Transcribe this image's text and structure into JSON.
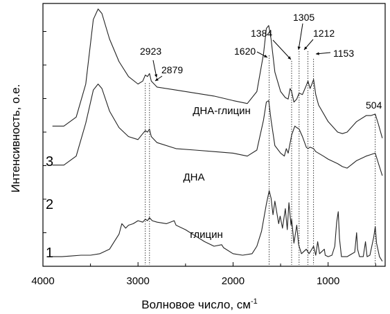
{
  "chart_data": {
    "type": "line",
    "xlabel": "Волновое число, см",
    "xlabel_sup": "-1",
    "ylabel": "Интенсивность, о.е.",
    "xlim": [
      4000,
      400
    ],
    "x_reversed": true,
    "y_ticks_labeled": false,
    "x_ticks": [
      4000,
      3000,
      2000,
      1000
    ],
    "x_tick_labels": [
      "4000",
      "3000",
      "2000",
      "1000"
    ],
    "series": [
      {
        "name": "ДНА-глицин",
        "number": "3",
        "offset": 0.7,
        "points": [
          [
            3900,
            0.22
          ],
          [
            3780,
            0.22
          ],
          [
            3650,
            0.28
          ],
          [
            3550,
            0.5
          ],
          [
            3470,
            0.93
          ],
          [
            3420,
            1.0
          ],
          [
            3380,
            0.97
          ],
          [
            3300,
            0.8
          ],
          [
            3200,
            0.65
          ],
          [
            3100,
            0.55
          ],
          [
            3000,
            0.5
          ],
          [
            2950,
            0.52
          ],
          [
            2923,
            0.56
          ],
          [
            2900,
            0.55
          ],
          [
            2879,
            0.57
          ],
          [
            2860,
            0.52
          ],
          [
            2800,
            0.48
          ],
          [
            2600,
            0.46
          ],
          [
            2400,
            0.44
          ],
          [
            2200,
            0.42
          ],
          [
            2000,
            0.39
          ],
          [
            1850,
            0.37
          ],
          [
            1750,
            0.45
          ],
          [
            1680,
            0.7
          ],
          [
            1650,
            0.87
          ],
          [
            1625,
            0.89
          ],
          [
            1600,
            0.8
          ],
          [
            1560,
            0.58
          ],
          [
            1500,
            0.45
          ],
          [
            1450,
            0.41
          ],
          [
            1420,
            0.4
          ],
          [
            1400,
            0.47
          ],
          [
            1384,
            0.45
          ],
          [
            1360,
            0.38
          ],
          [
            1330,
            0.4
          ],
          [
            1305,
            0.44
          ],
          [
            1270,
            0.43
          ],
          [
            1230,
            0.49
          ],
          [
            1212,
            0.52
          ],
          [
            1190,
            0.47
          ],
          [
            1170,
            0.5
          ],
          [
            1153,
            0.53
          ],
          [
            1130,
            0.43
          ],
          [
            1100,
            0.36
          ],
          [
            1000,
            0.25
          ],
          [
            900,
            0.18
          ],
          [
            850,
            0.17
          ],
          [
            800,
            0.18
          ],
          [
            700,
            0.25
          ],
          [
            600,
            0.29
          ],
          [
            550,
            0.29
          ],
          [
            504,
            0.3
          ],
          [
            470,
            0.23
          ],
          [
            430,
            0.14
          ]
        ]
      },
      {
        "name": "ДНА",
        "number": "2",
        "offset": 0.44,
        "points": [
          [
            3900,
            0.22
          ],
          [
            3780,
            0.22
          ],
          [
            3650,
            0.28
          ],
          [
            3550,
            0.5
          ],
          [
            3470,
            0.72
          ],
          [
            3420,
            0.76
          ],
          [
            3380,
            0.73
          ],
          [
            3300,
            0.58
          ],
          [
            3200,
            0.47
          ],
          [
            3100,
            0.41
          ],
          [
            3000,
            0.39
          ],
          [
            2950,
            0.43
          ],
          [
            2923,
            0.45
          ],
          [
            2900,
            0.44
          ],
          [
            2879,
            0.46
          ],
          [
            2860,
            0.41
          ],
          [
            2800,
            0.37
          ],
          [
            2600,
            0.33
          ],
          [
            2400,
            0.32
          ],
          [
            2200,
            0.31
          ],
          [
            2000,
            0.3
          ],
          [
            1850,
            0.28
          ],
          [
            1750,
            0.32
          ],
          [
            1680,
            0.52
          ],
          [
            1650,
            0.64
          ],
          [
            1625,
            0.65
          ],
          [
            1600,
            0.52
          ],
          [
            1560,
            0.35
          ],
          [
            1500,
            0.3
          ],
          [
            1460,
            0.28
          ],
          [
            1440,
            0.33
          ],
          [
            1420,
            0.3
          ],
          [
            1384,
            0.42
          ],
          [
            1350,
            0.48
          ],
          [
            1330,
            0.47
          ],
          [
            1305,
            0.46
          ],
          [
            1270,
            0.41
          ],
          [
            1230,
            0.34
          ],
          [
            1212,
            0.33
          ],
          [
            1190,
            0.34
          ],
          [
            1153,
            0.33
          ],
          [
            1130,
            0.31
          ],
          [
            1050,
            0.28
          ],
          [
            1000,
            0.26
          ],
          [
            900,
            0.23
          ],
          [
            850,
            0.21
          ],
          [
            800,
            0.2
          ],
          [
            700,
            0.25
          ],
          [
            600,
            0.28
          ],
          [
            550,
            0.29
          ],
          [
            504,
            0.3
          ],
          [
            470,
            0.23
          ],
          [
            430,
            0.15
          ]
        ]
      },
      {
        "name": "глицин",
        "number": "1",
        "offset": 0.0,
        "points": [
          [
            3900,
            0.05
          ],
          [
            3800,
            0.05
          ],
          [
            3700,
            0.055
          ],
          [
            3600,
            0.06
          ],
          [
            3500,
            0.06
          ],
          [
            3400,
            0.07
          ],
          [
            3300,
            0.1
          ],
          [
            3250,
            0.15
          ],
          [
            3200,
            0.2
          ],
          [
            3170,
            0.27
          ],
          [
            3130,
            0.24
          ],
          [
            3100,
            0.26
          ],
          [
            3050,
            0.27
          ],
          [
            3000,
            0.29
          ],
          [
            2950,
            0.28
          ],
          [
            2923,
            0.3
          ],
          [
            2900,
            0.29
          ],
          [
            2879,
            0.31
          ],
          [
            2850,
            0.29
          ],
          [
            2800,
            0.28
          ],
          [
            2700,
            0.27
          ],
          [
            2620,
            0.29
          ],
          [
            2600,
            0.26
          ],
          [
            2500,
            0.23
          ],
          [
            2400,
            0.19
          ],
          [
            2300,
            0.15
          ],
          [
            2200,
            0.12
          ],
          [
            2120,
            0.13
          ],
          [
            2100,
            0.11
          ],
          [
            2000,
            0.07
          ],
          [
            1900,
            0.06
          ],
          [
            1800,
            0.07
          ],
          [
            1750,
            0.12
          ],
          [
            1700,
            0.22
          ],
          [
            1650,
            0.4
          ],
          [
            1620,
            0.49
          ],
          [
            1600,
            0.44
          ],
          [
            1580,
            0.33
          ],
          [
            1560,
            0.42
          ],
          [
            1520,
            0.27
          ],
          [
            1505,
            0.32
          ],
          [
            1480,
            0.24
          ],
          [
            1450,
            0.37
          ],
          [
            1430,
            0.23
          ],
          [
            1412,
            0.41
          ],
          [
            1390,
            0.26
          ],
          [
            1384,
            0.3
          ],
          [
            1360,
            0.14
          ],
          [
            1330,
            0.26
          ],
          [
            1310,
            0.13
          ],
          [
            1280,
            0.07
          ],
          [
            1230,
            0.1
          ],
          [
            1200,
            0.07
          ],
          [
            1153,
            0.12
          ],
          [
            1130,
            0.06
          ],
          [
            1110,
            0.15
          ],
          [
            1090,
            0.07
          ],
          [
            1040,
            0.1
          ],
          [
            1030,
            0.06
          ],
          [
            1000,
            0.05
          ],
          [
            960,
            0.06
          ],
          [
            930,
            0.12
          ],
          [
            910,
            0.28
          ],
          [
            893,
            0.35
          ],
          [
            880,
            0.17
          ],
          [
            860,
            0.05
          ],
          [
            800,
            0.05
          ],
          [
            720,
            0.08
          ],
          [
            700,
            0.21
          ],
          [
            690,
            0.1
          ],
          [
            670,
            0.05
          ],
          [
            630,
            0.05
          ],
          [
            607,
            0.15
          ],
          [
            590,
            0.05
          ],
          [
            560,
            0.06
          ],
          [
            520,
            0.18
          ],
          [
            504,
            0.25
          ],
          [
            490,
            0.14
          ],
          [
            460,
            0.05
          ],
          [
            430,
            0.02
          ]
        ]
      }
    ],
    "annotations": [
      {
        "text": "2923",
        "x": 2923
      },
      {
        "text": "2879",
        "x": 2879
      },
      {
        "text": "1620",
        "x": 1620
      },
      {
        "text": "1384",
        "x": 1384
      },
      {
        "text": "1305",
        "x": 1305
      },
      {
        "text": "1212",
        "x": 1212
      },
      {
        "text": "1153",
        "x": 1153
      },
      {
        "text": "504",
        "x": 504
      }
    ],
    "grid": false,
    "legend": "inline"
  }
}
